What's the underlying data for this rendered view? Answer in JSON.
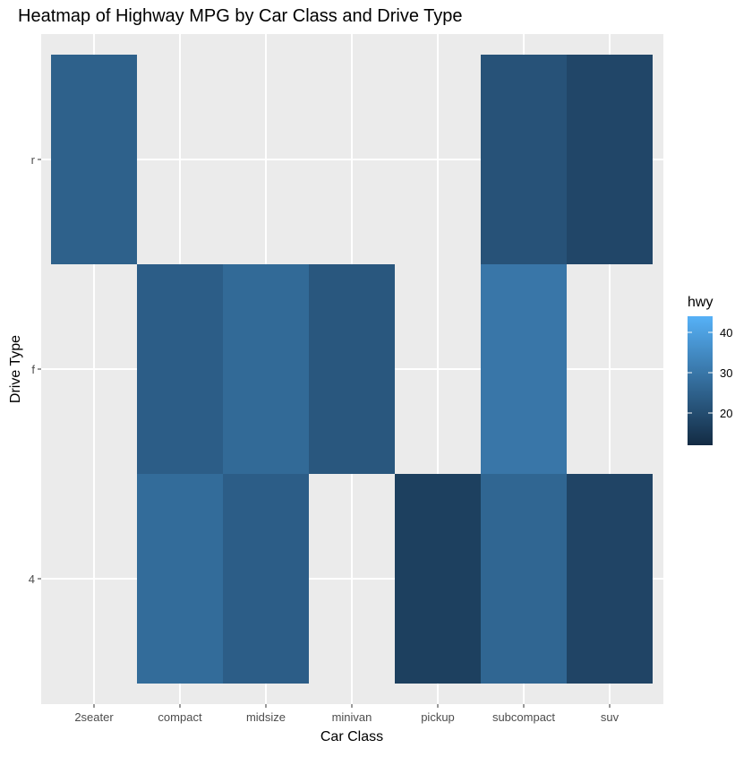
{
  "chart_data": {
    "type": "heatmap",
    "title": "Heatmap of Highway MPG by Car Class and Drive Type",
    "xlabel": "Car Class",
    "ylabel": "Drive Type",
    "x_categories": [
      "2seater",
      "compact",
      "midsize",
      "minivan",
      "pickup",
      "subcompact",
      "suv"
    ],
    "y_categories": [
      "4",
      "f",
      "r"
    ],
    "cells": [
      {
        "x": "2seater",
        "y": "r",
        "value": 24.8
      },
      {
        "x": "subcompact",
        "y": "r",
        "value": 21.4
      },
      {
        "x": "suv",
        "y": "r",
        "value": 18.5
      },
      {
        "x": "compact",
        "y": "f",
        "value": 24.0
      },
      {
        "x": "midsize",
        "y": "f",
        "value": 27.0
      },
      {
        "x": "minivan",
        "y": "f",
        "value": 22.4
      },
      {
        "x": "subcompact",
        "y": "f",
        "value": 30.0
      },
      {
        "x": "compact",
        "y": "4",
        "value": 27.5
      },
      {
        "x": "midsize",
        "y": "4",
        "value": 24.0
      },
      {
        "x": "pickup",
        "y": "4",
        "value": 16.9
      },
      {
        "x": "subcompact",
        "y": "4",
        "value": 26.0
      },
      {
        "x": "suv",
        "y": "4",
        "value": 18.0
      }
    ],
    "colorbar": {
      "title": "hwy",
      "min": 12,
      "max": 44,
      "ticks": [
        20,
        30,
        40
      ],
      "low_color": "#132b43",
      "high_color": "#56b1f7"
    },
    "grid": true,
    "legend_position": "right"
  }
}
